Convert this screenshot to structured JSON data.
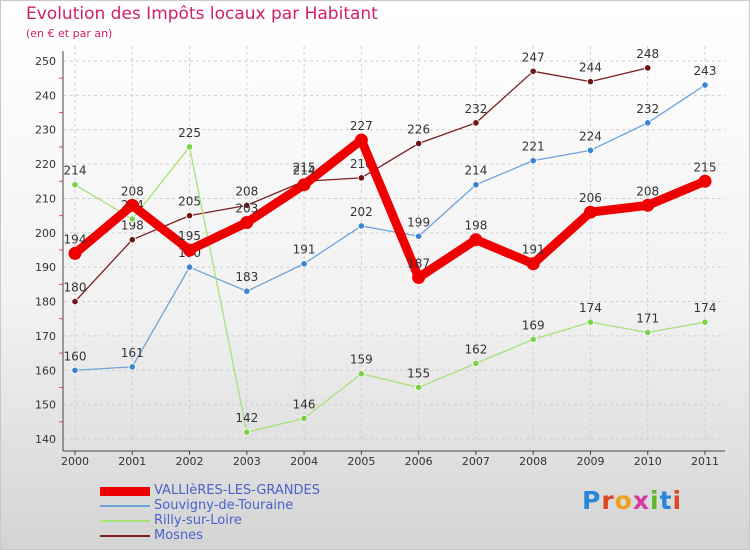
{
  "header": {
    "title": "Evolution des Impôts locaux par Habitant",
    "subtitle": "(en € et par an)"
  },
  "logo": {
    "text": "Proxiti",
    "letters": [
      "P",
      "r",
      "o",
      "x",
      "i",
      "t",
      "i"
    ],
    "colors": [
      "#2a86d8",
      "#e0452a",
      "#f0a020",
      "#d63aa0",
      "#5cb82c",
      "#2a86d8",
      "#e0452a"
    ]
  },
  "chart_data": {
    "type": "line",
    "x": [
      2000,
      2001,
      2002,
      2003,
      2004,
      2005,
      2006,
      2007,
      2008,
      2009,
      2010,
      2011
    ],
    "ylim": [
      140,
      250
    ],
    "yticks": [
      140,
      150,
      160,
      170,
      180,
      190,
      200,
      210,
      220,
      230,
      240,
      250
    ],
    "grid": true,
    "legend_position": "bottom-left",
    "series": [
      {
        "name": "Mosnes",
        "color": "#7a2020",
        "point_color": "#6b1515",
        "values": [
          180,
          198,
          205,
          208,
          215,
          216,
          226,
          232,
          247,
          244,
          248,
          null
        ]
      },
      {
        "name": "Souvigny-de-Touraine",
        "color": "#6fa3d8",
        "point_color": "#3a84d0",
        "values": [
          160,
          161,
          190,
          183,
          191,
          202,
          199,
          214,
          221,
          224,
          232,
          243
        ]
      },
      {
        "name": "Rilly-sur-Loire",
        "color": "#a6e27a",
        "point_color": "#7bd048",
        "values": [
          214,
          204,
          225,
          142,
          146,
          159,
          155,
          162,
          169,
          174,
          171,
          174
        ]
      },
      {
        "name": "VALLIèRES-LES-GRANDES",
        "color": "#ee0000",
        "point_color": "#ee0000",
        "values": [
          194,
          208,
          195,
          203,
          214,
          227,
          187,
          198,
          191,
          206,
          208,
          215
        ]
      }
    ]
  }
}
